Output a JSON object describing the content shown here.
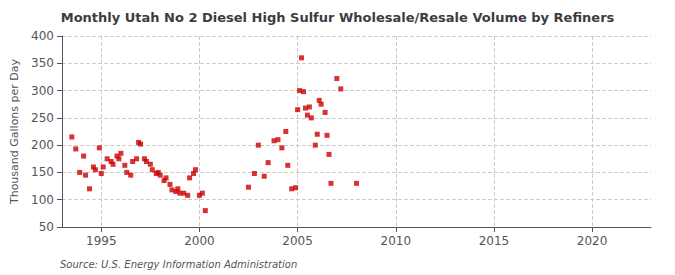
{
  "chart_data": {
    "type": "scatter",
    "title": "Monthly Utah No 2 Diesel High Sulfur Wholesale/Resale Volume by Refiners",
    "ylabel": "Thousand Gallons per Day",
    "annotations": [
      "Source: U.S. Energy Information Administration"
    ],
    "color": "#cc0000",
    "marker": "square",
    "grid": true,
    "xlim": [
      1993,
      2023
    ],
    "ylim": [
      50,
      400
    ],
    "xticks": [
      1995,
      2000,
      2005,
      2010,
      2015,
      2020
    ],
    "yticks": [
      50,
      100,
      150,
      200,
      250,
      300,
      350,
      400
    ],
    "x": [
      1993.5,
      1993.7,
      1993.9,
      1994.1,
      1994.2,
      1994.4,
      1994.6,
      1994.7,
      1994.9,
      1995.0,
      1995.1,
      1995.3,
      1995.5,
      1995.6,
      1995.8,
      1995.9,
      1996.0,
      1996.2,
      1996.3,
      1996.5,
      1996.6,
      1996.8,
      1996.9,
      1997.0,
      1997.2,
      1997.3,
      1997.5,
      1997.6,
      1997.8,
      1997.9,
      1998.0,
      1998.2,
      1998.3,
      1998.5,
      1998.6,
      1998.8,
      1998.9,
      1999.0,
      1999.2,
      1999.4,
      1999.5,
      1999.7,
      1999.8,
      2000.0,
      2000.15,
      2000.3,
      2002.5,
      2002.8,
      2003.0,
      2003.3,
      2003.5,
      2003.8,
      2004.0,
      2004.2,
      2004.4,
      2004.5,
      2004.7,
      2004.9,
      2005.0,
      2005.1,
      2005.2,
      2005.3,
      2005.4,
      2005.5,
      2005.6,
      2005.7,
      2005.9,
      2006.0,
      2006.1,
      2006.2,
      2006.4,
      2006.5,
      2006.6,
      2006.7,
      2007.0,
      2007.2,
      2008.0
    ],
    "values": [
      215,
      193,
      150,
      180,
      145,
      120,
      160,
      155,
      195,
      148,
      160,
      175,
      170,
      165,
      180,
      175,
      185,
      163,
      150,
      145,
      170,
      175,
      205,
      202,
      175,
      170,
      165,
      155,
      148,
      150,
      145,
      135,
      140,
      128,
      118,
      115,
      120,
      112,
      112,
      108,
      140,
      148,
      155,
      108,
      112,
      80,
      123,
      148,
      200,
      143,
      168,
      208,
      210,
      195,
      225,
      163,
      120,
      122,
      265,
      300,
      360,
      298,
      268,
      255,
      270,
      250,
      200,
      220,
      282,
      275,
      260,
      218,
      183,
      130,
      322,
      303,
      130
    ]
  }
}
